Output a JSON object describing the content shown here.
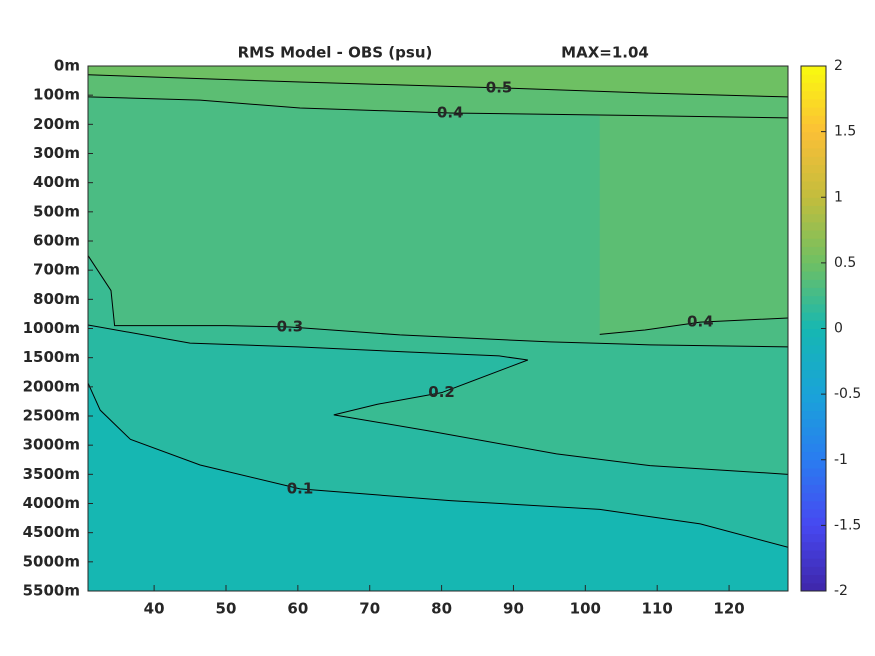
{
  "chart_data": {
    "type": "contour",
    "title": "RMS Model - OBS (psu)",
    "annotation": "MAX=1.04",
    "categories": [
      "0m",
      "100m",
      "200m",
      "300m",
      "400m",
      "500m",
      "600m",
      "700m",
      "800m",
      "1000m",
      "1500m",
      "2000m",
      "2500m",
      "3000m",
      "3500m",
      "4000m",
      "4500m",
      "5000m",
      "5500m"
    ],
    "xlim": [
      30.8,
      128.2
    ],
    "xticks": [
      40,
      50,
      60,
      70,
      80,
      90,
      100,
      110,
      120
    ],
    "colormap": "parula",
    "colorbar": {
      "lim": [
        -2,
        2
      ],
      "ticks": [
        -2,
        -1.5,
        -1,
        -0.5,
        0,
        0.5,
        1,
        1.5,
        2
      ]
    },
    "contours": [
      {
        "level": 0.1,
        "x": [
          30.8,
          32.5,
          36.7,
          46.4,
          60.3,
          81.2,
          102,
          116,
          128.2
        ],
        "y": [
          10.87,
          11.8,
          12.8,
          13.68,
          14.5,
          14.9,
          15.2,
          15.7,
          16.5
        ]
      },
      {
        "level": 0.2,
        "x": [
          30.8,
          45,
          60,
          75,
          88,
          92,
          80,
          71,
          65,
          78,
          96,
          109,
          128.2
        ],
        "y": [
          8.88,
          9.5,
          9.63,
          9.8,
          9.94,
          10.08,
          11.2,
          11.6,
          11.96,
          12.5,
          13.3,
          13.7,
          14.0
        ]
      },
      {
        "level": 0.3,
        "x": [
          30.8,
          34,
          34.5,
          50,
          58.9,
          74.2,
          95.1,
          109,
          128.2
        ],
        "y": [
          6.5,
          7.7,
          8.9,
          8.9,
          8.95,
          9.22,
          9.46,
          9.56,
          9.63
        ]
      },
      {
        "level": 0.4,
        "x": [
          102,
          108.3,
          116,
          128.2
        ],
        "y": [
          9.2,
          9.05,
          8.78,
          8.64
        ]
      },
      {
        "level": 0.4,
        "x": [
          30.8,
          46.4,
          60.3,
          81.2,
          102,
          128.2
        ],
        "y": [
          1.06,
          1.17,
          1.44,
          1.61,
          1.68,
          1.78
        ]
      },
      {
        "level": 0.5,
        "x": [
          30.8,
          60.3,
          88,
          109,
          128.2
        ],
        "y": [
          0.3,
          0.55,
          0.75,
          0.93,
          1.06
        ]
      }
    ]
  }
}
